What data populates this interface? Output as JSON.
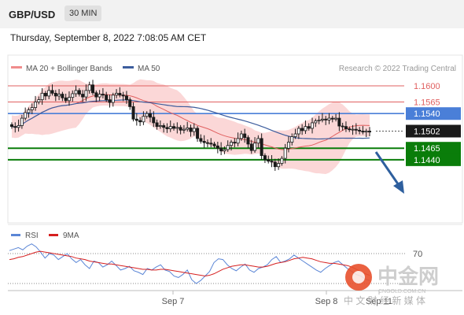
{
  "header": {
    "symbol": "GBP/USD",
    "timeframe": "30 MIN"
  },
  "timestamp": "Thursday, September 8, 2022 7:08:05 AM CET",
  "legend": {
    "item1": "MA 20 + Bollinger Bands",
    "item2": "MA 50",
    "credit": "Research © 2022 Trading Central"
  },
  "rsi_legend": {
    "item1": "RSI",
    "item2": "9MA"
  },
  "colors": {
    "resistance": "#e06060",
    "pivot": "#4a7fd8",
    "support": "#0a7d0a",
    "candle": "#1a1a1a",
    "bollinger": "#f9c9c9",
    "ma20": "#e06060",
    "ma50": "#3d5d9d",
    "rsi": "#5b86d6",
    "rsi_ma": "#d62020",
    "arrow": "#2e5f9e"
  },
  "chart_data": [
    {
      "type": "candlestick",
      "ylim": [
        1.14,
        1.163
      ],
      "x_ticks": [
        "Sep 7",
        "Sep 8",
        "Sep 11"
      ],
      "levels": [
        {
          "label": "1.1600",
          "value": 1.16,
          "kind": "resistance"
        },
        {
          "label": "1.1565",
          "value": 1.1565,
          "kind": "resistance"
        },
        {
          "label": "1.1540",
          "value": 1.154,
          "kind": "pivot"
        },
        {
          "label": "1.1502",
          "value": 1.1502,
          "kind": "current"
        },
        {
          "label": "1.1465",
          "value": 1.1465,
          "kind": "support"
        },
        {
          "label": "1.1440",
          "value": 1.144,
          "kind": "support"
        }
      ],
      "closes": [
        1.1512,
        1.151,
        1.1514,
        1.153,
        1.1542,
        1.1548,
        1.1553,
        1.1565,
        1.157,
        1.1584,
        1.1578,
        1.159,
        1.1584,
        1.1578,
        1.1582,
        1.1574,
        1.1568,
        1.1575,
        1.1583,
        1.159,
        1.1582,
        1.1576,
        1.159,
        1.1602,
        1.1585,
        1.1576,
        1.1582,
        1.158,
        1.157,
        1.1564,
        1.158,
        1.1584,
        1.158,
        1.1578,
        1.157,
        1.1555,
        1.1528,
        1.1525,
        1.1522,
        1.1534,
        1.154,
        1.1532,
        1.152,
        1.1512,
        1.1514,
        1.151,
        1.1507,
        1.1512,
        1.1508,
        1.151,
        1.1504,
        1.1506,
        1.1509,
        1.1501,
        1.1508,
        1.1486,
        1.148,
        1.1477,
        1.1476,
        1.1474,
        1.147,
        1.1465,
        1.1459,
        1.1462,
        1.1471,
        1.1478,
        1.1476,
        1.1486,
        1.1496,
        1.1488,
        1.1474,
        1.146,
        1.1476,
        1.1486,
        1.1449,
        1.144,
        1.1437,
        1.1435,
        1.1425,
        1.1432,
        1.1443,
        1.1465,
        1.1478,
        1.149,
        1.1496,
        1.1508,
        1.1503,
        1.1512,
        1.1508,
        1.152,
        1.1524,
        1.1526,
        1.1528,
        1.1526,
        1.153,
        1.1528,
        1.153,
        1.1513,
        1.1512,
        1.1507,
        1.1505,
        1.1506,
        1.1504,
        1.1502,
        1.15,
        1.1502,
        1.15
      ]
    },
    {
      "type": "line",
      "title": "RSI",
      "y_tick": "70",
      "ylim": [
        20,
        90
      ],
      "series": [
        {
          "name": "RSI",
          "values": [
            74,
            76,
            78,
            75,
            80,
            83,
            79,
            72,
            64,
            70,
            68,
            62,
            66,
            70,
            63,
            58,
            62,
            55,
            50,
            60,
            58,
            52,
            55,
            60,
            54,
            48,
            50,
            53,
            47,
            45,
            42,
            50,
            48,
            52,
            55,
            48,
            46,
            40,
            38,
            42,
            48,
            35,
            30,
            34,
            40,
            46,
            58,
            63,
            62,
            55,
            50,
            47,
            52,
            56,
            48,
            45,
            50,
            52,
            55,
            62,
            66,
            58,
            60,
            63,
            68,
            64,
            60,
            56,
            52,
            48,
            45,
            50,
            54,
            58,
            60,
            55,
            50,
            46,
            42,
            40,
            36,
            34
          ]
        },
        {
          "name": "9MA",
          "values": [
            62,
            63,
            65,
            66,
            68,
            70,
            72,
            73,
            72,
            71,
            70,
            69,
            68,
            67,
            66,
            64,
            63,
            62,
            60,
            59,
            58,
            57,
            56,
            56,
            55,
            54,
            53,
            52,
            51,
            50,
            49,
            49,
            48,
            48,
            49,
            49,
            48,
            47,
            46,
            45,
            44,
            43,
            42,
            41,
            40,
            41,
            43,
            46,
            49,
            51,
            53,
            54,
            55,
            55,
            54,
            53,
            52,
            52,
            53,
            55,
            57,
            58,
            59,
            61,
            63,
            64,
            65,
            64,
            63,
            61,
            59,
            58,
            57,
            57,
            56,
            55,
            54,
            52,
            49,
            46,
            43,
            41
          ]
        }
      ]
    }
  ],
  "watermark": {
    "brand": "中金网",
    "sub": "中 文 财 经 新 媒 体",
    "url": "CNGOLD.COM.CN"
  }
}
